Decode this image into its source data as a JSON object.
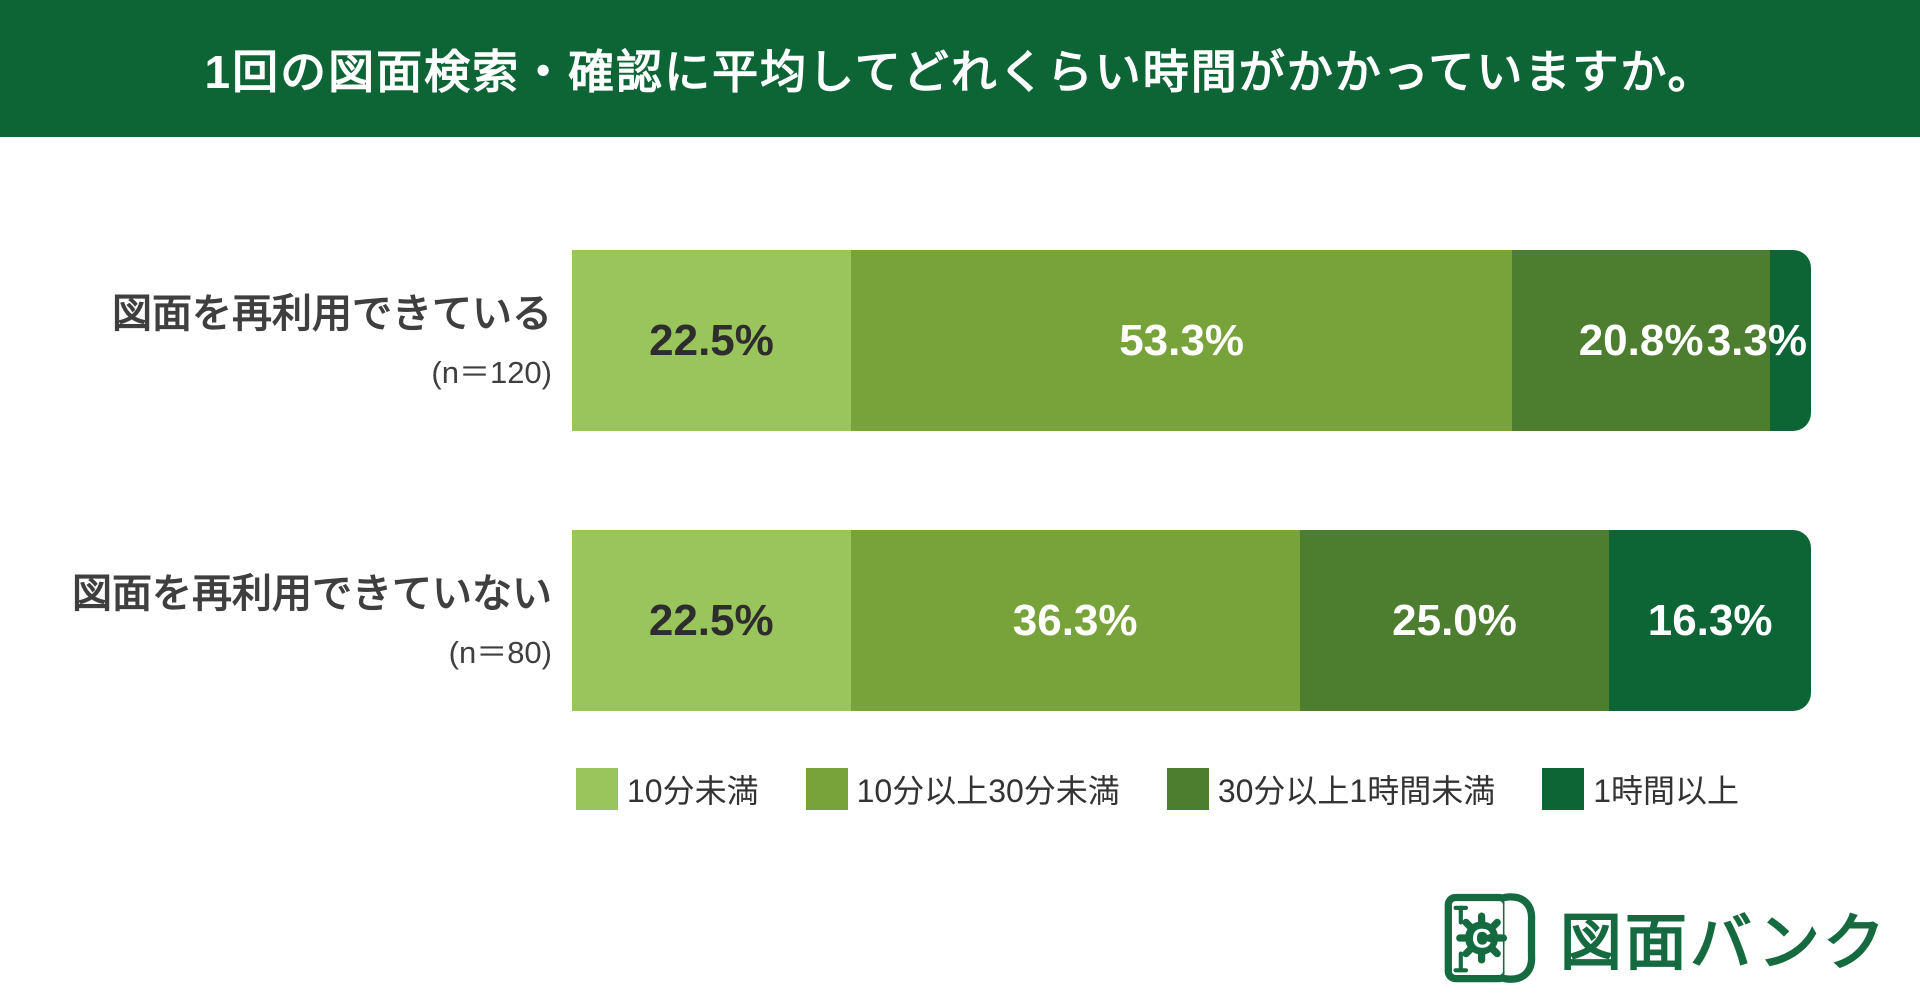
{
  "title": "1回の図面検索・確認に平均してどれくらい時間がかかっていますか。",
  "header": {
    "background": "#0d6434",
    "text_color": "#ffffff"
  },
  "chart_data": {
    "type": "bar",
    "orientation": "horizontal-stacked",
    "categories": [
      "図面を再利用できている",
      "図面を再利用できていない"
    ],
    "category_notes": [
      "(n＝120)",
      "(n＝80)"
    ],
    "series": [
      {
        "name": "10分未満",
        "color": "#9ac45c",
        "values": [
          22.5,
          22.5
        ]
      },
      {
        "name": "10分以上30分未満",
        "color": "#78a33a",
        "values": [
          53.3,
          36.3
        ]
      },
      {
        "name": "30分以上1時間未満",
        "color": "#4d7d2e",
        "values": [
          20.8,
          25.0
        ]
      },
      {
        "name": "1時間以上",
        "color": "#0d6434",
        "values": [
          3.3,
          16.3
        ]
      }
    ],
    "value_labels": [
      [
        "22.5%",
        "53.3%",
        "20.8%",
        "3.3%"
      ],
      [
        "22.5%",
        "36.3%",
        "25.0%",
        "16.3%"
      ]
    ],
    "xlim": [
      0,
      100
    ],
    "grid": false,
    "legend_position": "bottom"
  },
  "logo": {
    "text": "図面バンク",
    "color": "#156b3f",
    "icon": "blueprint-gear-icon"
  }
}
